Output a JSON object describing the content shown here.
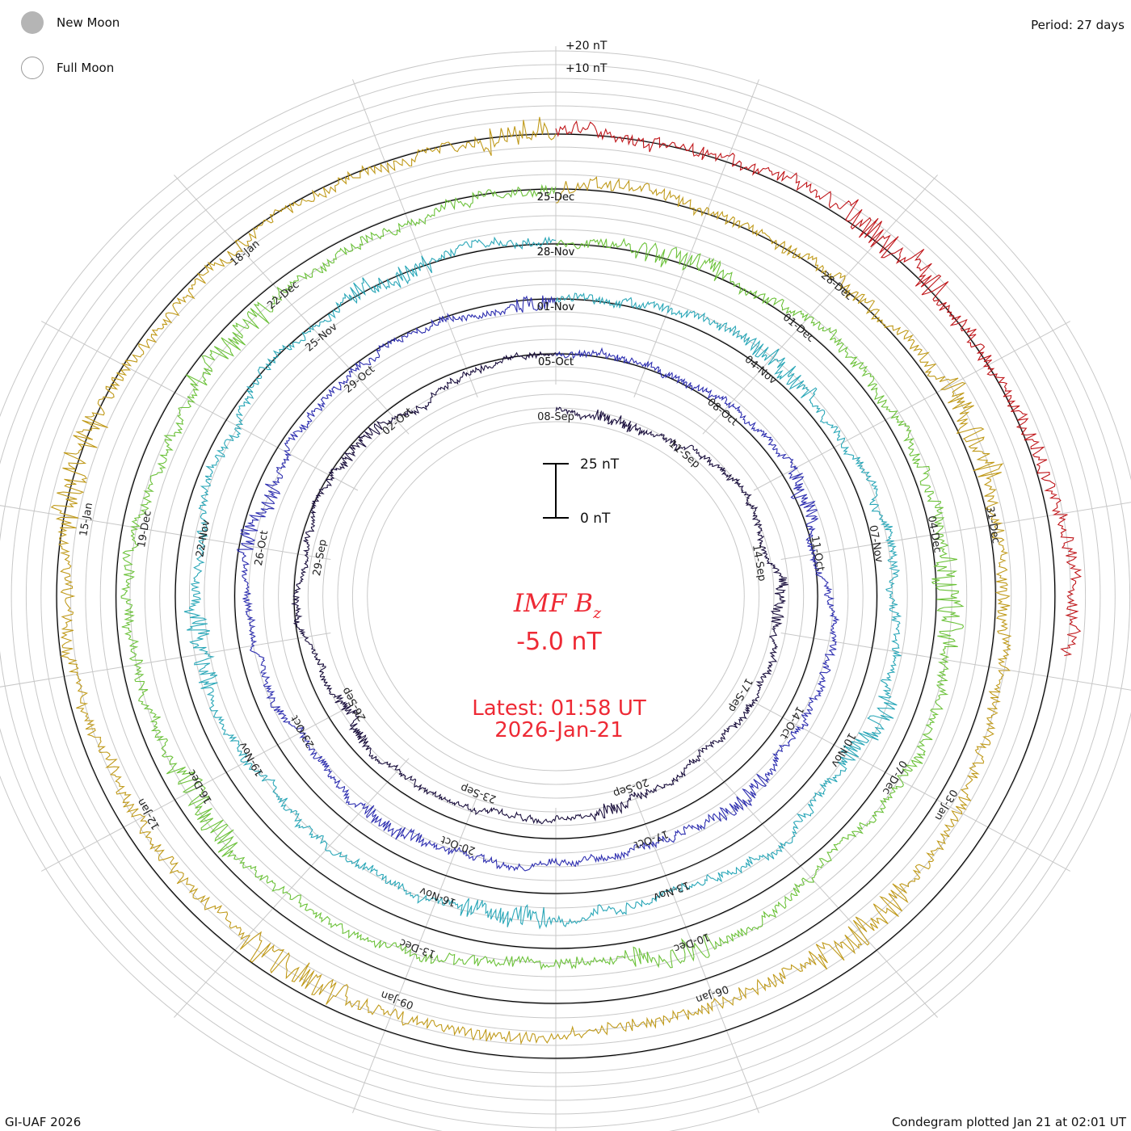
{
  "legend": {
    "new_moon": "New Moon",
    "full_moon": "Full Moon"
  },
  "period_label": "Period: 27 days",
  "footer_left": "GI-UAF 2026",
  "footer_right": "Condegram plotted Jan 21 at 02:01 UT",
  "chart_data": {
    "type": "line",
    "subtype": "condegram-spiral",
    "title": "IMF Bz",
    "title_main": "IMF B",
    "title_sub": "z",
    "current_value": "-5.0 nT",
    "latest_label": "Latest: 01:58 UT",
    "latest_date": "2026-Jan-21",
    "period_days": 27,
    "scale_bar": {
      "top_label": "25 nT",
      "bottom_label": "0 nT",
      "range_nT": [
        0,
        25
      ]
    },
    "ring_labels": [
      "+20 nT",
      "+10 nT"
    ],
    "rotations": [
      {
        "start": "08-Sep",
        "color": "#1a0f3d",
        "date_labels": [
          "08-Sep",
          "11-Sep",
          "14-Sep",
          "17-Sep",
          "20-Sep",
          "23-Sep",
          "26-Sep",
          "29-Sep",
          "02-Oct",
          "05-Oct"
        ]
      },
      {
        "start": "05-Oct",
        "color": "#2e2fb0",
        "date_labels": [
          "05-Oct",
          "08-Oct",
          "11-Oct",
          "14-Oct",
          "17-Oct",
          "20-Oct",
          "23-Oct",
          "26-Oct",
          "29-Oct",
          "01-Nov"
        ]
      },
      {
        "start": "01-Nov",
        "color": "#2aa7b8",
        "date_labels": [
          "01-Nov",
          "04-Nov",
          "07-Nov",
          "10-Nov",
          "13-Nov",
          "16-Nov",
          "19-Nov",
          "22-Nov",
          "25-Nov",
          "28-Nov"
        ]
      },
      {
        "start": "28-Nov",
        "color": "#6cc23a",
        "date_labels": [
          "28-Nov",
          "01-Dec",
          "04-Dec",
          "07-Dec",
          "10-Dec",
          "13-Dec",
          "16-Dec",
          "19-Dec",
          "22-Dec",
          "25-Dec"
        ]
      },
      {
        "start": "25-Dec",
        "color": "#c09a1a",
        "date_labels": [
          "25-Dec",
          "28-Dec",
          "31-Dec",
          "03-Jan",
          "06-Jan",
          "09-Jan",
          "12-Jan",
          "15-Jan",
          "18-Jan"
        ]
      },
      {
        "start": "18-Jan",
        "color": "#c0161a",
        "date_labels": []
      }
    ]
  }
}
